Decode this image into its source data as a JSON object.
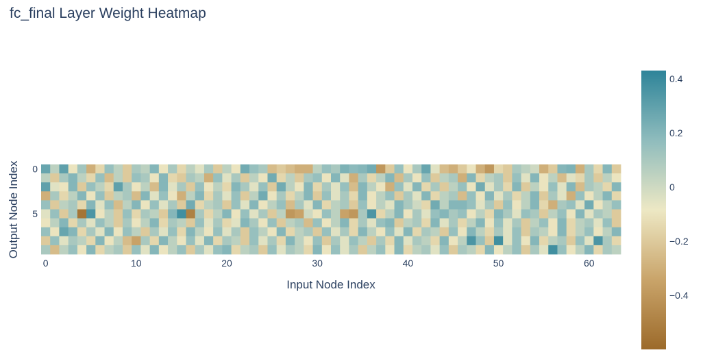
{
  "chart_data": {
    "type": "heatmap",
    "title": "fc_final Layer Weight Heatmap",
    "xlabel": "Input Node Index",
    "ylabel": "Output Node Index",
    "x_range": [
      0,
      63
    ],
    "y_range": [
      0,
      9
    ],
    "y_reversed": true,
    "x_ticks": [
      0,
      10,
      20,
      30,
      40,
      50,
      60
    ],
    "y_ticks": [
      0,
      5
    ],
    "colorscale": [
      "#9c6a2a",
      "#c9a46a",
      "#ede8c4",
      "#8fbcbd",
      "#2e8499"
    ],
    "zmin": -0.6,
    "zmax": 0.43,
    "colorbar_ticks": [
      0.4,
      0.2,
      0,
      -0.2,
      -0.4
    ],
    "colorbar_tick_labels": [
      "0.4",
      "0.2",
      "0",
      "−0.2",
      "−0.4"
    ],
    "z": [
      [
        0.28,
        0.05,
        0.3,
        -0.1,
        0.12,
        -0.3,
        -0.15,
        0.15,
        0.05,
        -0.2,
        0.1,
        0.05,
        0.2,
        -0.1,
        0.1,
        -0.15,
        0.05,
        -0.05,
        0.1,
        -0.2,
        0.05,
        -0.1,
        0.25,
        0.15,
        0.1,
        -0.25,
        -0.2,
        -0.25,
        -0.3,
        -0.3,
        0.05,
        0.15,
        0.1,
        0.22,
        0.18,
        0.2,
        0.25,
        -0.4,
        -0.2,
        0.15,
        -0.1,
        0.1,
        0.28,
        -0.05,
        -0.25,
        -0.3,
        -0.2,
        -0.1,
        -0.3,
        -0.4,
        -0.15,
        -0.2,
        0.1,
        0.05,
        0.0,
        -0.3,
        -0.2,
        0.2,
        0.22,
        -0.3,
        0.1,
        -0.15,
        0.2,
        -0.2
      ],
      [
        0.05,
        -0.2,
        0.1,
        0.2,
        0.05,
        -0.15,
        0.15,
        -0.25,
        0.05,
        -0.2,
        0.15,
        0.1,
        -0.1,
        0.2,
        -0.15,
        -0.2,
        0.1,
        0.05,
        -0.3,
        0.15,
        -0.05,
        0.1,
        -0.2,
        0.05,
        -0.1,
        0.25,
        -0.15,
        0.05,
        -0.2,
        0.1,
        0.15,
        -0.1,
        0.2,
        -0.05,
        -0.3,
        0.1,
        -0.15,
        0.05,
        0.2,
        -0.25,
        0.1,
        -0.1,
        0.15,
        -0.2,
        0.05,
        0.1,
        -0.3,
        0.2,
        -0.15,
        0.05,
        0.1,
        -0.2,
        0.15,
        -0.05,
        0.2,
        -0.1,
        0.05,
        -0.25,
        -0.05,
        -0.15,
        0.1,
        -0.2,
        0.05,
        -0.1
      ],
      [
        0.3,
        -0.05,
        -0.1,
        0.2,
        -0.2,
        0.15,
        0.05,
        -0.15,
        0.3,
        0.1,
        -0.1,
        0.05,
        -0.25,
        0.2,
        -0.05,
        0.1,
        -0.2,
        0.15,
        -0.1,
        0.05,
        -0.15,
        0.2,
        0.1,
        -0.05,
        0.15,
        -0.2,
        0.25,
        0.05,
        -0.1,
        0.2,
        -0.15,
        0.1,
        -0.05,
        0.15,
        -0.25,
        0.2,
        0.05,
        -0.1,
        -0.3,
        0.15,
        -0.05,
        0.2,
        -0.15,
        0.1,
        -0.2,
        0.05,
        0.15,
        -0.1,
        0.25,
        -0.05,
        0.1,
        -0.15,
        0.2,
        -0.2,
        0.05,
        -0.1,
        0.15,
        -0.05,
        0.2,
        -0.25,
        0.1,
        0.05,
        -0.15,
        0.2
      ],
      [
        -0.3,
        0.1,
        -0.15,
        0.05,
        0.2,
        -0.1,
        0.15,
        -0.2,
        0.05,
        0.1,
        -0.25,
        0.2,
        -0.05,
        0.15,
        -0.1,
        -0.3,
        0.05,
        0.2,
        -0.15,
        0.1,
        -0.05,
        0.15,
        -0.2,
        0.05,
        0.25,
        -0.1,
        0.1,
        -0.15,
        0.05,
        0.2,
        -0.2,
        0.15,
        -0.05,
        0.1,
        -0.15,
        0.2,
        -0.1,
        0.05,
        0.15,
        -0.2,
        0.1,
        -0.05,
        0.2,
        -0.15,
        0.05,
        0.1,
        -0.25,
        0.15,
        -0.1,
        0.2,
        -0.05,
        0.1,
        -0.15,
        0.05,
        0.2,
        -0.2,
        0.1,
        -0.05,
        -0.3,
        0.15,
        -0.1,
        0.05,
        0.2,
        -0.15
      ],
      [
        0.15,
        -0.2,
        0.05,
        0.1,
        -0.15,
        0.2,
        -0.05,
        0.15,
        -0.25,
        0.05,
        0.2,
        -0.1,
        0.15,
        -0.05,
        0.1,
        -0.2,
        0.25,
        -0.15,
        0.05,
        0.1,
        -0.2,
        0.15,
        -0.05,
        0.2,
        -0.1,
        0.05,
        0.15,
        -0.25,
        0.1,
        -0.05,
        0.2,
        -0.15,
        0.05,
        0.1,
        -0.2,
        0.15,
        -0.1,
        0.05,
        -0.05,
        0.2,
        0.1,
        0.0,
        -0.15,
        0.25,
        0.05,
        0.2,
        0.2,
        0.15,
        -0.05,
        0.1,
        -0.2,
        0.15,
        -0.1,
        0.05,
        0.2,
        -0.15,
        -0.3,
        0.1,
        0.15,
        -0.05,
        0.25,
        -0.1,
        0.05,
        0.15
      ],
      [
        -0.05,
        0.15,
        -0.2,
        0.1,
        -0.55,
        0.35,
        -0.1,
        0.05,
        -0.2,
        0.15,
        -0.15,
        0.1,
        0.05,
        -0.2,
        0.2,
        0.38,
        -0.5,
        0.1,
        -0.15,
        0.05,
        0.2,
        -0.1,
        0.15,
        -0.05,
        0.1,
        -0.2,
        0.05,
        -0.4,
        -0.35,
        0.0,
        -0.1,
        0.15,
        0.05,
        -0.35,
        -0.4,
        0.1,
        0.35,
        -0.15,
        0.05,
        0.2,
        -0.1,
        0.1,
        -0.05,
        0.15,
        0.2,
        0.1,
        0.15,
        -0.1,
        0.05,
        -0.15,
        0.2,
        0.1,
        -0.05,
        0.15,
        0.1,
        -0.2,
        0.05,
        0.15,
        -0.1,
        0.2,
        -0.05,
        0.1,
        0.05,
        -0.2
      ],
      [
        -0.1,
        0.05,
        0.2,
        -0.15,
        0.1,
        -0.05,
        0.15,
        0.05,
        -0.2,
        0.1,
        -0.1,
        0.05,
        0.2,
        -0.15,
        0.1,
        0.05,
        -0.2,
        0.15,
        -0.05,
        0.1,
        -0.15,
        -0.05,
        0.2,
        0.1,
        -0.1,
        0.15,
        -0.2,
        0.05,
        0.1,
        -0.25,
        0.15,
        -0.1,
        0.05,
        0.2,
        -0.15,
        0.1,
        -0.05,
        0.15,
        0.2,
        -0.2,
        0.05,
        0.1,
        -0.15,
        0.2,
        -0.05,
        0.1,
        -0.15,
        0.05,
        0.2,
        -0.1,
        0.15,
        -0.05,
        0.1,
        -0.2,
        0.05,
        0.15,
        -0.1,
        0.2,
        -0.15,
        0.05,
        0.1,
        -0.05,
        0.15,
        -0.2
      ],
      [
        0.15,
        -0.1,
        0.28,
        0.2,
        -0.15,
        0.1,
        -0.05,
        0.2,
        -0.1,
        0.15,
        0.05,
        -0.2,
        0.1,
        -0.05,
        0.15,
        -0.15,
        0.2,
        0.05,
        -0.1,
        0.15,
        -0.05,
        0.1,
        -0.2,
        0.15,
        0.05,
        -0.1,
        0.2,
        -0.15,
        0.05,
        0.1,
        -0.2,
        0.15,
        -0.05,
        0.1,
        -0.15,
        0.2,
        0.05,
        -0.1,
        0.15,
        -0.05,
        0.2,
        -0.15,
        0.1,
        0.05,
        -0.2,
        0.15,
        -0.1,
        0.2,
        0.05,
        -0.15,
        0.1,
        -0.05,
        0.15,
        -0.2,
        0.1,
        0.05,
        -0.1,
        0.2,
        -0.15,
        0.05,
        0.15,
        -0.1,
        0.05,
        0.2
      ],
      [
        -0.2,
        0.15,
        -0.05,
        0.1,
        0.05,
        -0.15,
        0.2,
        -0.1,
        0.05,
        -0.25,
        -0.35,
        0.1,
        -0.15,
        0.2,
        0.05,
        -0.1,
        0.15,
        -0.05,
        0.2,
        -0.15,
        0.1,
        0.05,
        -0.2,
        0.15,
        -0.05,
        0.1,
        -0.15,
        0.2,
        0.05,
        -0.1,
        0.15,
        -0.2,
        0.1,
        -0.05,
        0.15,
        0.05,
        -0.2,
        0.1,
        -0.15,
        0.2,
        -0.05,
        0.1,
        0.05,
        -0.15,
        0.2,
        -0.1,
        0.05,
        0.35,
        0.15,
        -0.2,
        0.38,
        -0.05,
        0.15,
        -0.1,
        0.2,
        -0.15,
        0.05,
        0.1,
        -0.2,
        0.15,
        -0.05,
        0.35,
        0.1,
        -0.15
      ],
      [
        0.1,
        -0.25,
        0.05,
        0.15,
        -0.1,
        0.2,
        -0.15,
        0.05,
        0.1,
        -0.2,
        0.15,
        -0.05,
        0.2,
        -0.1,
        0.05,
        0.15,
        -0.2,
        0.1,
        -0.05,
        0.15,
        0.2,
        -0.15,
        0.05,
        0.1,
        -0.2,
        0.15,
        -0.05,
        0.1,
        0.05,
        -0.15,
        0.2,
        -0.1,
        0.15,
        -0.05,
        0.1,
        -0.2,
        0.05,
        0.15,
        -0.1,
        0.2,
        -0.15,
        0.05,
        0.1,
        -0.05,
        0.15,
        -0.2,
        0.1,
        0.05,
        -0.15,
        0.2,
        -0.1,
        0.05,
        0.15,
        -0.2,
        0.1,
        -0.05,
        0.38,
        0.15,
        -0.1,
        0.05,
        0.2,
        -0.15,
        0.1,
        0.05
      ]
    ]
  }
}
